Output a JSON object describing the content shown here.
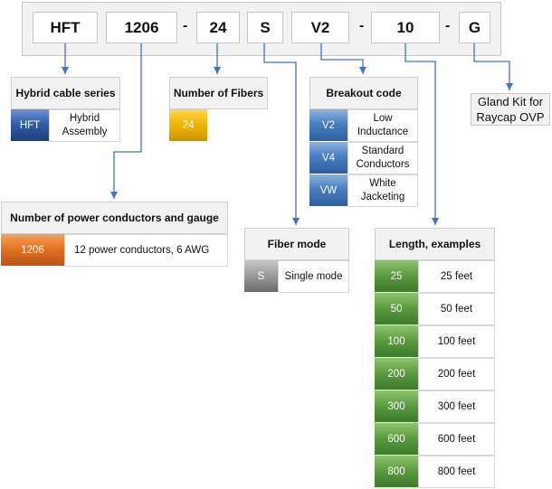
{
  "part_number": {
    "segments": [
      "HFT",
      "1206",
      "24",
      "S",
      "V2",
      "10",
      "G"
    ],
    "separator": "-"
  },
  "hybrid_cable_series": {
    "title": "Hybrid cable series",
    "rows": [
      {
        "code": "HFT",
        "desc": "Hybrid Assembly"
      }
    ]
  },
  "number_of_fibers": {
    "title": "Number of Fibers",
    "rows": [
      {
        "code": "24"
      }
    ]
  },
  "breakout_code": {
    "title": "Breakout code",
    "rows": [
      {
        "code": "V2",
        "desc": "Low Inductance"
      },
      {
        "code": "V4",
        "desc": "Standard Conductors"
      },
      {
        "code": "VW",
        "desc": "White Jacketing"
      }
    ]
  },
  "gland_kit": {
    "label": "Gland Kit for Raycap OVP"
  },
  "power_conductors": {
    "title": "Number of power conductors and gauge",
    "rows": [
      {
        "code": "1206",
        "desc": "12 power conductors, 6 AWG"
      }
    ]
  },
  "fiber_mode": {
    "title": "Fiber mode",
    "rows": [
      {
        "code": "S",
        "desc": "Single mode"
      }
    ]
  },
  "length": {
    "title": "Length, examples",
    "rows": [
      {
        "code": "25",
        "desc": "25 feet"
      },
      {
        "code": "50",
        "desc": "50 feet"
      },
      {
        "code": "100",
        "desc": "100 feet"
      },
      {
        "code": "200",
        "desc": "200 feet"
      },
      {
        "code": "300",
        "desc": "300 feet"
      },
      {
        "code": "600",
        "desc": "600 feet"
      },
      {
        "code": "800",
        "desc": "800 feet"
      }
    ]
  },
  "colors": {
    "arrow": "#4472c4",
    "series": "#2f5aa3",
    "fibers": "#f0b400",
    "breakout": "#4a7fc0",
    "power": "#e07020",
    "mode": "#9a9a9a",
    "length": "#5a9a3e"
  }
}
